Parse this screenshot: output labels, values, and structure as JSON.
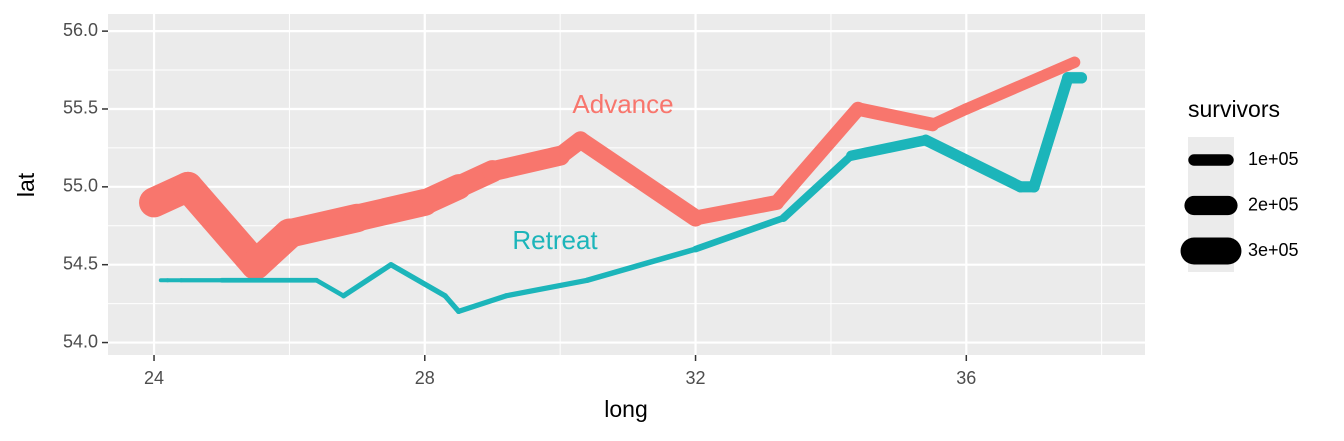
{
  "chart_data": {
    "type": "line",
    "x_label": "long",
    "y_label": "lat",
    "xlim": [
      23.32,
      38.64
    ],
    "ylim": [
      53.92,
      56.11
    ],
    "xticks": [
      24,
      28,
      32,
      36
    ],
    "yticks": [
      {
        "value": 54,
        "label": "54.0"
      },
      54.5,
      {
        "value": 55,
        "label": "55.0"
      },
      55.5,
      {
        "value": 56,
        "label": "56.0"
      }
    ],
    "grid": true,
    "series": [
      {
        "name": "Advance",
        "color": "#F8766D",
        "long": [
          24.0,
          24.5,
          25.5,
          26.0,
          27.0,
          28.0,
          28.5,
          29.0,
          30.0,
          30.3,
          32.0,
          33.2,
          34.4,
          35.5,
          36.0,
          37.6
        ],
        "lat": [
          54.9,
          55.0,
          54.5,
          54.7,
          54.8,
          54.9,
          55.0,
          55.1,
          55.2,
          55.3,
          54.8,
          54.9,
          55.5,
          55.4,
          55.5,
          55.8
        ],
        "survivors": [
          340000,
          340000,
          340000,
          320000,
          300000,
          280000,
          240000,
          210000,
          180000,
          175000,
          145000,
          140000,
          127100,
          100000,
          100000,
          100000
        ]
      },
      {
        "name": "Retreat",
        "color": "#1CB5BA",
        "long": [
          37.7,
          37.5,
          37.0,
          36.8,
          35.4,
          34.3,
          33.3,
          32.0,
          30.4,
          29.2,
          28.5,
          28.3,
          27.5,
          26.8,
          26.4,
          25.0,
          24.4,
          24.2,
          24.1
        ],
        "lat": [
          55.7,
          55.7,
          55.0,
          55.0,
          55.3,
          55.2,
          54.8,
          54.6,
          54.4,
          54.3,
          54.2,
          54.3,
          54.5,
          54.3,
          54.4,
          54.4,
          54.4,
          54.4,
          54.4
        ],
        "survivors": [
          100000,
          98000,
          97000,
          96000,
          87000,
          55000,
          37000,
          24000,
          20000,
          20000,
          20000,
          20000,
          20000,
          12000,
          14000,
          8000,
          4000,
          4000,
          4000
        ]
      }
    ],
    "legend": {
      "title": "survivors",
      "position": "right",
      "breaks": [
        {
          "value": 100000,
          "label": "1e+05"
        },
        {
          "value": 200000,
          "label": "2e+05"
        },
        {
          "value": 300000,
          "label": "3e+05"
        }
      ]
    }
  }
}
